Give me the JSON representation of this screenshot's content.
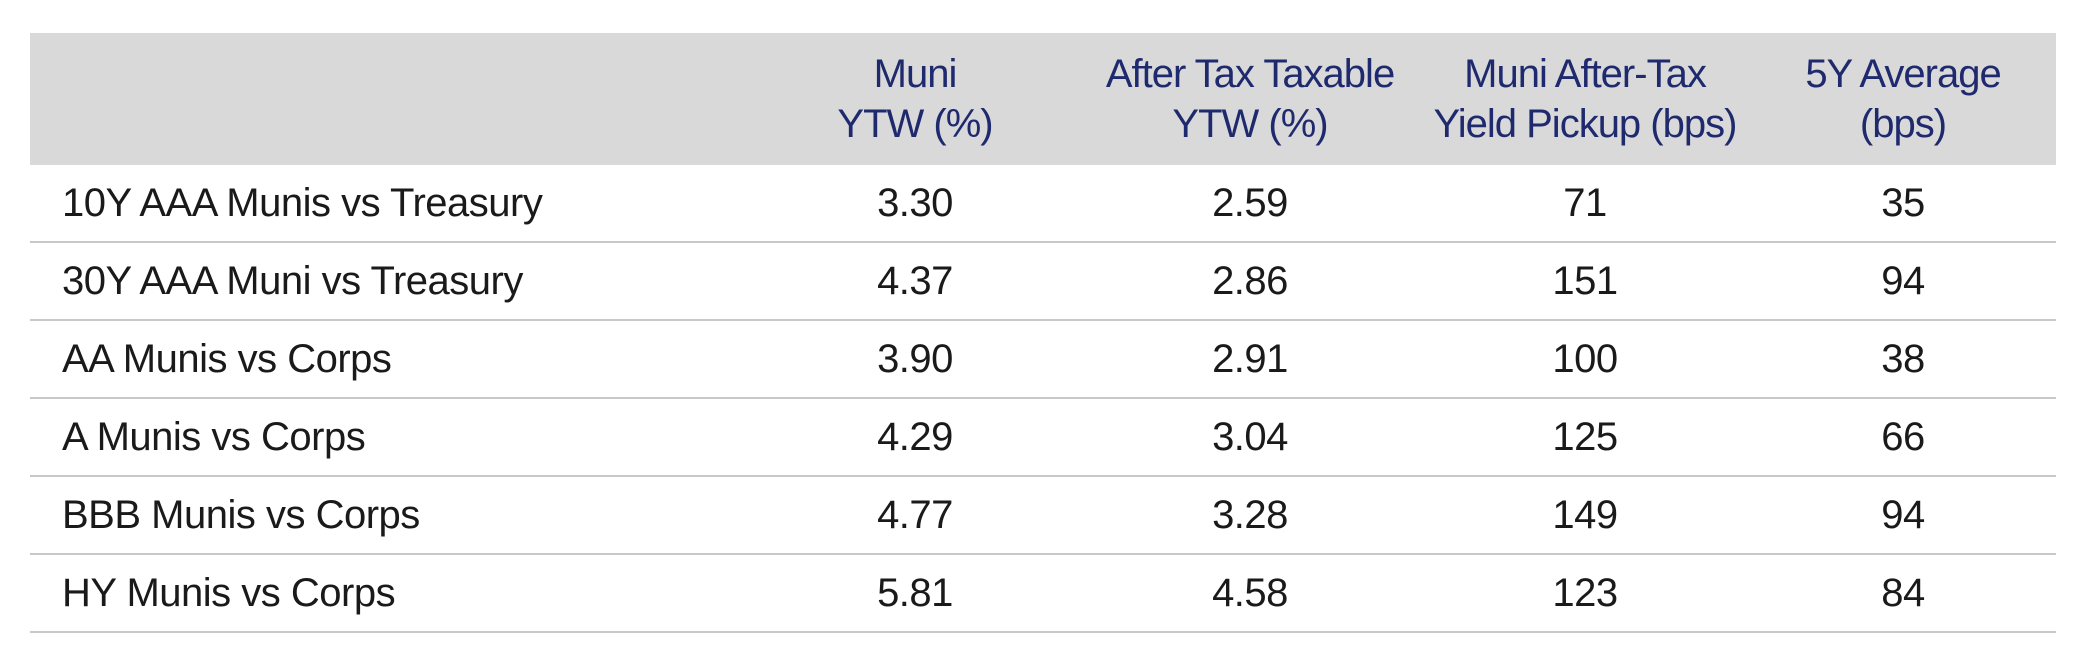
{
  "chart_data": {
    "type": "table",
    "title": "",
    "columns": [
      "",
      [
        "Muni",
        "YTW (%)"
      ],
      [
        "After Tax Taxable",
        "YTW (%)"
      ],
      [
        "Muni After-Tax",
        "Yield Pickup (bps)"
      ],
      [
        "5Y Average",
        "(bps)"
      ]
    ],
    "rows": [
      {
        "label": "10Y AAA Munis vs Treasury",
        "values": [
          "3.30",
          "2.59",
          "71",
          "35"
        ]
      },
      {
        "label": "30Y AAA Muni vs Treasury",
        "values": [
          "4.37",
          "2.86",
          "151",
          "94"
        ]
      },
      {
        "label": "AA Munis vs Corps",
        "values": [
          "3.90",
          "2.91",
          "100",
          "38"
        ]
      },
      {
        "label": "A Munis vs Corps",
        "values": [
          "4.29",
          "3.04",
          "125",
          "66"
        ]
      },
      {
        "label": "BBB Munis vs Corps",
        "values": [
          "4.77",
          "3.28",
          "149",
          "94"
        ]
      },
      {
        "label": "HY Munis vs Corps",
        "values": [
          "5.81",
          "4.58",
          "123",
          "84"
        ]
      }
    ]
  },
  "colors": {
    "header_bg": "#d9d9d9",
    "header_text": "#1f2a6e",
    "body_text": "#1a1a1a",
    "row_rule": "#c8c8c8"
  }
}
